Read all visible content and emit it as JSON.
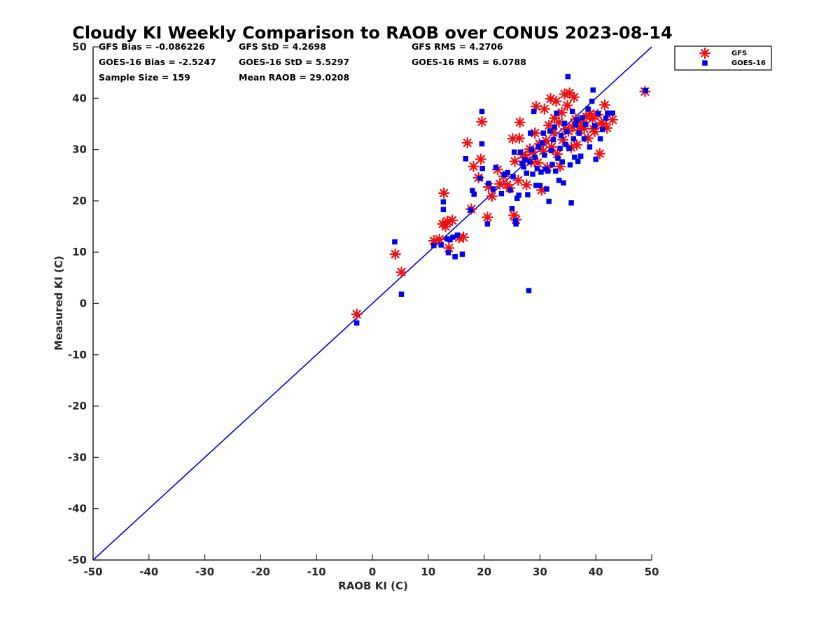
{
  "chart_data": {
    "type": "scatter",
    "title": "Cloudy KI Weekly Comparison to RAOB over CONUS 2023-08-14",
    "xlabel": "RAOB KI (C)",
    "ylabel": "Measured KI (C)",
    "xlim": [
      -50,
      50
    ],
    "ylim": [
      -50,
      50
    ],
    "xticks": [
      "-50",
      "-40",
      "-30",
      "-20",
      "-10",
      "0",
      "10",
      "20",
      "30",
      "40",
      "50"
    ],
    "yticks": [
      "-50",
      "-40",
      "-30",
      "-20",
      "-10",
      "0",
      "10",
      "20",
      "30",
      "40",
      "50"
    ],
    "grid": false,
    "legend_position": "top-right (outside axes)",
    "stats": [
      "GFS Bias = -0.086226",
      "GFS StD = 4.2698",
      "GFS RMS = 4.2706",
      "GOES-16 Bias = -2.5247",
      "GOES-16 StD = 5.5297",
      "GOES-16 RMS = 6.0788",
      "Sample Size = 159",
      "Mean RAOB = 29.0208"
    ],
    "reference_line": {
      "type": "one-to-one",
      "color": "#0000dd"
    },
    "series": [
      {
        "name": "GFS",
        "marker": "asterisk",
        "color": "#ee1111",
        "points": [
          [
            -2.8,
            -2.1
          ],
          [
            4.1,
            9.6
          ],
          [
            5.2,
            6.1
          ],
          [
            11.0,
            12.2
          ],
          [
            12.0,
            12.5
          ],
          [
            12.6,
            15.5
          ],
          [
            12.8,
            21.5
          ],
          [
            13.1,
            15.0
          ],
          [
            13.4,
            16.0
          ],
          [
            13.7,
            10.8
          ],
          [
            14.3,
            16.2
          ],
          [
            15.5,
            12.8
          ],
          [
            16.3,
            12.9
          ],
          [
            17.0,
            31.3
          ],
          [
            17.7,
            18.4
          ],
          [
            18.1,
            26.7
          ],
          [
            19.0,
            24.5
          ],
          [
            19.4,
            28.1
          ],
          [
            19.6,
            35.4
          ],
          [
            20.6,
            16.8
          ],
          [
            20.8,
            22.7
          ],
          [
            21.4,
            20.9
          ],
          [
            22.4,
            26.1
          ],
          [
            22.8,
            23.3
          ],
          [
            23.5,
            24.8
          ],
          [
            24.1,
            23.1
          ],
          [
            24.6,
            22.5
          ],
          [
            25.1,
            32.1
          ],
          [
            25.3,
            17.2
          ],
          [
            25.5,
            27.7
          ],
          [
            25.7,
            16.3
          ],
          [
            26.1,
            24.0
          ],
          [
            26.3,
            32.2
          ],
          [
            26.4,
            35.3
          ],
          [
            26.9,
            29.0
          ],
          [
            27.4,
            28.4
          ],
          [
            27.6,
            23.1
          ],
          [
            28.2,
            30.1
          ],
          [
            28.4,
            27.6
          ],
          [
            28.7,
            29.5
          ],
          [
            29.1,
            33.2
          ],
          [
            29.3,
            38.4
          ],
          [
            29.6,
            27.4
          ],
          [
            29.9,
            31.1
          ],
          [
            30.3,
            22.1
          ],
          [
            30.6,
            29.7
          ],
          [
            30.8,
            37.9
          ],
          [
            31.1,
            31.7
          ],
          [
            31.3,
            26.5
          ],
          [
            31.6,
            34.7
          ],
          [
            31.9,
            39.9
          ],
          [
            32.1,
            30.5
          ],
          [
            32.4,
            33.3
          ],
          [
            32.6,
            36.1
          ],
          [
            32.9,
            39.4
          ],
          [
            33.1,
            29.1
          ],
          [
            33.4,
            35.3
          ],
          [
            33.6,
            26.7
          ],
          [
            33.9,
            37.2
          ],
          [
            34.1,
            31.9
          ],
          [
            34.4,
            40.8
          ],
          [
            34.6,
            34.0
          ],
          [
            34.9,
            38.6
          ],
          [
            35.1,
            33.6
          ],
          [
            35.3,
            41.0
          ],
          [
            35.6,
            30.4
          ],
          [
            35.8,
            34.4
          ],
          [
            36.1,
            40.2
          ],
          [
            36.4,
            35.9
          ],
          [
            36.6,
            30.9
          ],
          [
            37.0,
            33.8
          ],
          [
            37.3,
            35.5
          ],
          [
            37.6,
            34.7
          ],
          [
            37.9,
            34.1
          ],
          [
            38.3,
            36.4
          ],
          [
            38.6,
            32.2
          ],
          [
            39.0,
            37.0
          ],
          [
            39.4,
            36.0
          ],
          [
            39.6,
            34.0
          ],
          [
            39.8,
            33.5
          ],
          [
            40.3,
            36.8
          ],
          [
            40.7,
            29.2
          ],
          [
            41.0,
            35.2
          ],
          [
            41.3,
            34.9
          ],
          [
            41.6,
            38.7
          ],
          [
            42.0,
            34.2
          ],
          [
            43.0,
            35.8
          ],
          [
            48.8,
            41.3
          ]
        ]
      },
      {
        "name": "GOES-16",
        "marker": "square",
        "color": "#0000ee",
        "points": [
          [
            -2.8,
            -3.8
          ],
          [
            4.0,
            12.0
          ],
          [
            5.2,
            1.8
          ],
          [
            11.0,
            11.3
          ],
          [
            12.3,
            11.4
          ],
          [
            12.7,
            19.8
          ],
          [
            12.7,
            18.3
          ],
          [
            13.4,
            12.6
          ],
          [
            13.6,
            9.9
          ],
          [
            13.9,
            12.4
          ],
          [
            14.4,
            12.9
          ],
          [
            14.8,
            9.1
          ],
          [
            15.2,
            13.3
          ],
          [
            16.1,
            9.6
          ],
          [
            16.7,
            28.2
          ],
          [
            17.6,
            18.2
          ],
          [
            17.9,
            22.0
          ],
          [
            18.2,
            21.3
          ],
          [
            19.3,
            24.4
          ],
          [
            19.6,
            37.4
          ],
          [
            19.6,
            31.1
          ],
          [
            19.7,
            26.3
          ],
          [
            20.6,
            15.5
          ],
          [
            20.8,
            23.4
          ],
          [
            21.6,
            22.3
          ],
          [
            22.1,
            26.5
          ],
          [
            23.1,
            21.4
          ],
          [
            23.6,
            25.1
          ],
          [
            24.2,
            25.5
          ],
          [
            24.7,
            22.1
          ],
          [
            25.0,
            18.5
          ],
          [
            25.2,
            24.7
          ],
          [
            25.4,
            29.5
          ],
          [
            25.6,
            16.1
          ],
          [
            25.7,
            15.5
          ],
          [
            25.9,
            20.5
          ],
          [
            26.2,
            21.1
          ],
          [
            26.5,
            29.5
          ],
          [
            26.8,
            27.3
          ],
          [
            27.1,
            26.6
          ],
          [
            27.3,
            28.0
          ],
          [
            27.6,
            25.4
          ],
          [
            27.8,
            21.2
          ],
          [
            28.0,
            2.5
          ],
          [
            28.2,
            27.6
          ],
          [
            28.3,
            33.2
          ],
          [
            28.5,
            30.0
          ],
          [
            28.7,
            25.2
          ],
          [
            28.9,
            37.4
          ],
          [
            29.1,
            28.5
          ],
          [
            29.3,
            23.0
          ],
          [
            29.5,
            26.3
          ],
          [
            29.7,
            30.5
          ],
          [
            30.0,
            23.0
          ],
          [
            30.2,
            25.6
          ],
          [
            30.4,
            31.3
          ],
          [
            30.6,
            33.2
          ],
          [
            30.8,
            28.9
          ],
          [
            31.0,
            26.2
          ],
          [
            31.2,
            22.3
          ],
          [
            31.4,
            25.8
          ],
          [
            31.6,
            19.9
          ],
          [
            31.8,
            33.6
          ],
          [
            32.0,
            29.8
          ],
          [
            32.2,
            27.1
          ],
          [
            32.4,
            31.9
          ],
          [
            32.6,
            34.4
          ],
          [
            32.8,
            25.8
          ],
          [
            33.0,
            37.1
          ],
          [
            33.2,
            28.3
          ],
          [
            33.4,
            24.0
          ],
          [
            33.6,
            30.2
          ],
          [
            33.8,
            32.7
          ],
          [
            34.0,
            27.6
          ],
          [
            34.2,
            23.5
          ],
          [
            34.4,
            35.1
          ],
          [
            34.6,
            31.0
          ],
          [
            34.8,
            33.5
          ],
          [
            35.0,
            44.2
          ],
          [
            35.2,
            30.2
          ],
          [
            35.4,
            27.0
          ],
          [
            35.6,
            19.6
          ],
          [
            35.8,
            37.4
          ],
          [
            36.0,
            32.1
          ],
          [
            36.2,
            28.5
          ],
          [
            36.4,
            34.8
          ],
          [
            36.6,
            35.8
          ],
          [
            36.8,
            27.7
          ],
          [
            37.0,
            33.2
          ],
          [
            37.3,
            28.7
          ],
          [
            37.6,
            36.2
          ],
          [
            37.9,
            32.1
          ],
          [
            38.2,
            34.9
          ],
          [
            38.6,
            37.9
          ],
          [
            38.9,
            30.5
          ],
          [
            39.3,
            39.4
          ],
          [
            39.5,
            41.6
          ],
          [
            39.8,
            34.6
          ],
          [
            40.0,
            28.1
          ],
          [
            40.4,
            37.0
          ],
          [
            40.8,
            32.1
          ],
          [
            41.2,
            33.9
          ],
          [
            41.8,
            36.1
          ],
          [
            42.1,
            37.1
          ],
          [
            43.0,
            37.1
          ],
          [
            48.9,
            41.5
          ]
        ]
      }
    ]
  }
}
